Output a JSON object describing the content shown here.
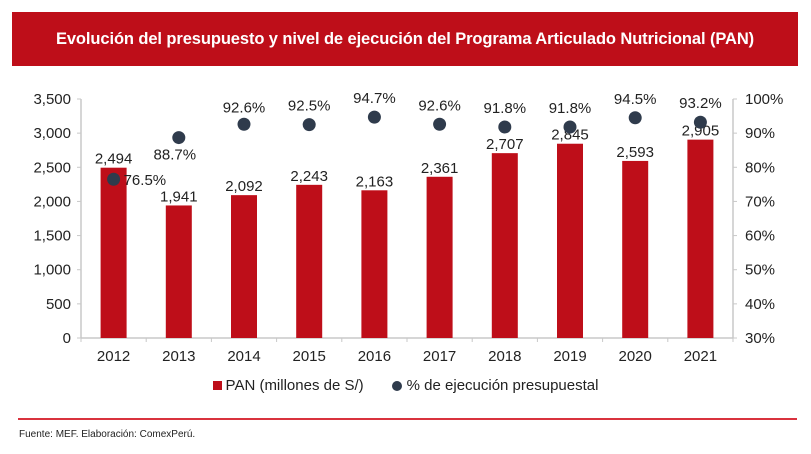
{
  "title": "Evolución del presupuesto y nivel de ejecución del Programa Articulado Nutricional (PAN)",
  "source": "Fuente: MEF. Elaboración: ComexPerú.",
  "colors": {
    "bar": "#be0e19",
    "dot": "#2f3b4c",
    "title_bg": "#be0e19",
    "axis": "#c8c8c8"
  },
  "chart_data": {
    "type": "bar+scatter",
    "title": "Evolución del presupuesto y nivel de ejecución del Programa Articulado Nutricional (PAN)",
    "categories": [
      "2012",
      "2013",
      "2014",
      "2015",
      "2016",
      "2017",
      "2018",
      "2019",
      "2020",
      "2021"
    ],
    "series": [
      {
        "name": "PAN (millones de S/)",
        "type": "bar",
        "axis": "left",
        "values": [
          2494,
          1941,
          2092,
          2243,
          2163,
          2361,
          2707,
          2845,
          2593,
          2905
        ],
        "labels": [
          "2,494",
          "1,941",
          "2,092",
          "2,243",
          "2,163",
          "2,361",
          "2,707",
          "2,845",
          "2,593",
          "2,905"
        ]
      },
      {
        "name": "% de ejecución presupuestal",
        "type": "scatter",
        "axis": "right",
        "values": [
          76.5,
          88.7,
          92.6,
          92.5,
          94.7,
          92.6,
          91.8,
          91.8,
          94.5,
          93.2
        ],
        "labels": [
          "76.5%",
          "88.7%",
          "92.6%",
          "92.5%",
          "94.7%",
          "92.6%",
          "91.8%",
          "91.8%",
          "94.5%",
          "93.2%"
        ]
      }
    ],
    "y_left": {
      "range": [
        0,
        3500
      ],
      "ticks": [
        0,
        500,
        1000,
        1500,
        2000,
        2500,
        3000,
        3500
      ],
      "tick_labels": [
        "0",
        "500",
        "1,000",
        "1,500",
        "2,000",
        "2,500",
        "3,000",
        "3,500"
      ]
    },
    "y_right": {
      "range": [
        30,
        100
      ],
      "ticks": [
        30,
        40,
        50,
        60,
        70,
        80,
        90,
        100
      ],
      "tick_labels": [
        "30%",
        "40%",
        "50%",
        "60%",
        "70%",
        "80%",
        "90%",
        "100%"
      ]
    },
    "xlabel": "",
    "ylabel": "",
    "grid": false,
    "legend": {
      "position": "bottom",
      "entries": [
        "PAN (millones de S/)",
        "% de ejecución presupuestal"
      ]
    }
  }
}
